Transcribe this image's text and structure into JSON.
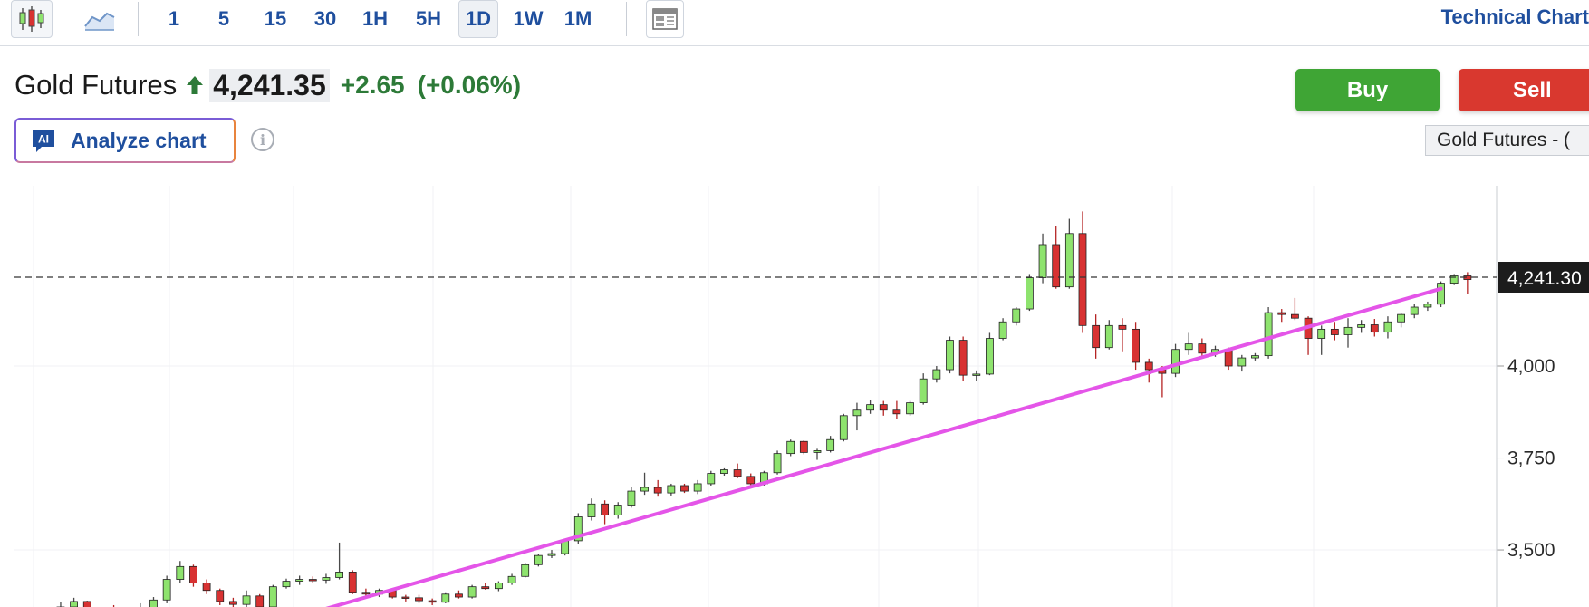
{
  "toolbar": {
    "intervals": [
      "1",
      "5",
      "15",
      "30",
      "1H",
      "5H",
      "1D",
      "1W",
      "1M"
    ],
    "active_interval": "1D",
    "technical_chart_label": "Technical Chart",
    "icons": [
      "candlestick-icon",
      "area-chart-icon",
      "layout-icon"
    ]
  },
  "quote": {
    "name": "Gold Futures",
    "direction": "up",
    "price": "4,241.35",
    "change": "+2.65",
    "change_pct": "(+0.06%)",
    "up_color": "#2d7a38"
  },
  "actions": {
    "buy_label": "Buy",
    "sell_label": "Sell",
    "analyze_label": "Analyze chart",
    "ai_badge": "AI",
    "symbol_badge": "Gold Futures - ("
  },
  "chart_data": {
    "type": "candlestick",
    "series_name": "",
    "y_ticks": [
      "4,000",
      "3,750",
      "3,500"
    ],
    "y_tick_values": [
      4000,
      3750,
      3500
    ],
    "ylim": [
      3345,
      4490
    ],
    "current_price_label": "4,241.30",
    "current_price": 4241.3,
    "trendline": {
      "start": {
        "index": 22,
        "value": 3330
      },
      "end": {
        "index": 107,
        "value": 4210
      },
      "color": "#e455e8"
    },
    "grid": true,
    "up_color": "#8ee36e",
    "down_color": "#d83232",
    "candles": [
      [
        3332,
        3338,
        3318,
        3326
      ],
      [
        3326,
        3345,
        3310,
        3312
      ],
      [
        3312,
        3330,
        3300,
        3324
      ],
      [
        3324,
        3358,
        3318,
        3345
      ],
      [
        3345,
        3370,
        3330,
        3360
      ],
      [
        3360,
        3362,
        3325,
        3330
      ],
      [
        3330,
        3342,
        3316,
        3338
      ],
      [
        3338,
        3350,
        3318,
        3326
      ],
      [
        3326,
        3340,
        3300,
        3334
      ],
      [
        3334,
        3355,
        3326,
        3342
      ],
      [
        3342,
        3372,
        3330,
        3364
      ],
      [
        3364,
        3430,
        3355,
        3420
      ],
      [
        3420,
        3470,
        3410,
        3455
      ],
      [
        3455,
        3460,
        3400,
        3410
      ],
      [
        3410,
        3420,
        3380,
        3390
      ],
      [
        3390,
        3395,
        3350,
        3360
      ],
      [
        3360,
        3370,
        3345,
        3352
      ],
      [
        3352,
        3390,
        3345,
        3375
      ],
      [
        3375,
        3380,
        3340,
        3345
      ],
      [
        3345,
        3405,
        3340,
        3400
      ],
      [
        3400,
        3422,
        3395,
        3415
      ],
      [
        3415,
        3430,
        3405,
        3420
      ],
      [
        3420,
        3428,
        3410,
        3418
      ],
      [
        3418,
        3435,
        3408,
        3425
      ],
      [
        3425,
        3520,
        3420,
        3440
      ],
      [
        3440,
        3445,
        3380,
        3385
      ],
      [
        3385,
        3395,
        3375,
        3380
      ],
      [
        3380,
        3395,
        3372,
        3390
      ],
      [
        3390,
        3395,
        3368,
        3372
      ],
      [
        3372,
        3378,
        3360,
        3370
      ],
      [
        3370,
        3378,
        3355,
        3362
      ],
      [
        3362,
        3368,
        3350,
        3358
      ],
      [
        3358,
        3385,
        3355,
        3380
      ],
      [
        3380,
        3390,
        3368,
        3372
      ],
      [
        3372,
        3405,
        3368,
        3400
      ],
      [
        3400,
        3410,
        3392,
        3395
      ],
      [
        3395,
        3415,
        3388,
        3410
      ],
      [
        3410,
        3435,
        3405,
        3428
      ],
      [
        3428,
        3465,
        3425,
        3460
      ],
      [
        3460,
        3490,
        3455,
        3485
      ],
      [
        3485,
        3500,
        3478,
        3490
      ],
      [
        3490,
        3530,
        3485,
        3525
      ],
      [
        3525,
        3600,
        3515,
        3590
      ],
      [
        3590,
        3640,
        3580,
        3625
      ],
      [
        3625,
        3635,
        3570,
        3595
      ],
      [
        3595,
        3630,
        3585,
        3622
      ],
      [
        3622,
        3670,
        3615,
        3660
      ],
      [
        3660,
        3710,
        3650,
        3670
      ],
      [
        3670,
        3690,
        3645,
        3655
      ],
      [
        3655,
        3680,
        3648,
        3675
      ],
      [
        3675,
        3680,
        3655,
        3660
      ],
      [
        3660,
        3690,
        3652,
        3680
      ],
      [
        3680,
        3715,
        3675,
        3708
      ],
      [
        3708,
        3722,
        3702,
        3718
      ],
      [
        3718,
        3735,
        3695,
        3700
      ],
      [
        3700,
        3708,
        3668,
        3680
      ],
      [
        3680,
        3715,
        3675,
        3710
      ],
      [
        3710,
        3770,
        3705,
        3762
      ],
      [
        3762,
        3800,
        3755,
        3795
      ],
      [
        3795,
        3798,
        3760,
        3765
      ],
      [
        3765,
        3775,
        3745,
        3770
      ],
      [
        3770,
        3810,
        3765,
        3800
      ],
      [
        3800,
        3870,
        3795,
        3865
      ],
      [
        3865,
        3900,
        3825,
        3880
      ],
      [
        3880,
        3908,
        3870,
        3895
      ],
      [
        3895,
        3905,
        3865,
        3880
      ],
      [
        3880,
        3905,
        3855,
        3870
      ],
      [
        3870,
        3905,
        3865,
        3900
      ],
      [
        3900,
        3980,
        3895,
        3965
      ],
      [
        3965,
        4000,
        3955,
        3990
      ],
      [
        3990,
        4080,
        3980,
        4070
      ],
      [
        4070,
        4080,
        3960,
        3975
      ],
      [
        3975,
        3988,
        3960,
        3978
      ],
      [
        3978,
        4090,
        3975,
        4075
      ],
      [
        4075,
        4130,
        4070,
        4120
      ],
      [
        4120,
        4160,
        4110,
        4155
      ],
      [
        4155,
        4250,
        4150,
        4240
      ],
      [
        4240,
        4360,
        4225,
        4330
      ],
      [
        4330,
        4380,
        4210,
        4215
      ],
      [
        4215,
        4400,
        4210,
        4360
      ],
      [
        4360,
        4420,
        4090,
        4110
      ],
      [
        4110,
        4140,
        4020,
        4050
      ],
      [
        4050,
        4125,
        4045,
        4110
      ],
      [
        4110,
        4130,
        4040,
        4100
      ],
      [
        4100,
        4120,
        3990,
        4010
      ],
      [
        4010,
        4020,
        3955,
        3990
      ],
      [
        3990,
        4000,
        3915,
        3980
      ],
      [
        3980,
        4060,
        3970,
        4045
      ],
      [
        4045,
        4090,
        4030,
        4060
      ],
      [
        4060,
        4075,
        4025,
        4035
      ],
      [
        4035,
        4055,
        4025,
        4045
      ],
      [
        4045,
        4050,
        3990,
        4000
      ],
      [
        4000,
        4030,
        3985,
        4022
      ],
      [
        4022,
        4035,
        4015,
        4028
      ],
      [
        4028,
        4160,
        4020,
        4145
      ],
      [
        4145,
        4155,
        4120,
        4140
      ],
      [
        4140,
        4185,
        4125,
        4130
      ],
      [
        4130,
        4135,
        4030,
        4075
      ],
      [
        4075,
        4110,
        4030,
        4100
      ],
      [
        4100,
        4120,
        4070,
        4085
      ],
      [
        4085,
        4130,
        4050,
        4105
      ],
      [
        4105,
        4125,
        4090,
        4112
      ],
      [
        4112,
        4128,
        4080,
        4092
      ],
      [
        4092,
        4135,
        4075,
        4120
      ],
      [
        4120,
        4145,
        4105,
        4140
      ],
      [
        4140,
        4168,
        4130,
        4160
      ],
      [
        4160,
        4175,
        4150,
        4168
      ],
      [
        4168,
        4230,
        4160,
        4225
      ],
      [
        4225,
        4250,
        4220,
        4245
      ],
      [
        4245,
        4255,
        4195,
        4235
      ]
    ]
  }
}
